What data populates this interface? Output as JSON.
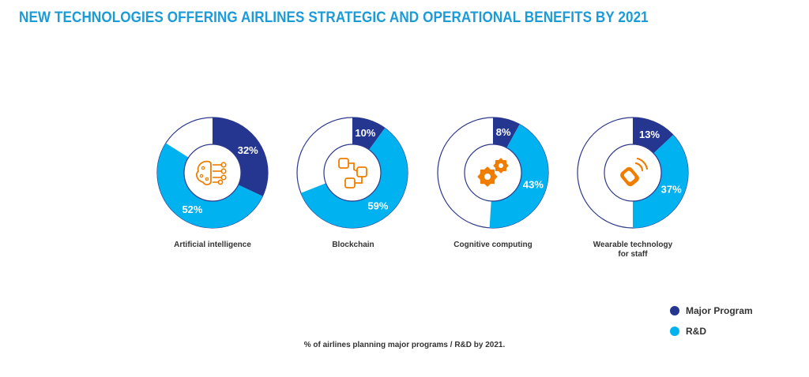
{
  "title": "NEW TECHNOLOGIES OFFERING AIRLINES STRATEGIC AND OPERATIONAL BENEFITS BY 2021",
  "colors": {
    "major": "#253691",
    "rd": "#00b2ef",
    "ring_border": "#2e3a8c",
    "icon": "#f07d00"
  },
  "chart_data": {
    "type": "pie",
    "subtype": "donut",
    "series_names": [
      "Major Program",
      "R&D"
    ],
    "charts": [
      {
        "name": "Artificial intelligence",
        "icon": "ai-brain-icon",
        "major_program": 32,
        "rd": 52,
        "major_label": "32%",
        "rd_label": "52%"
      },
      {
        "name": "Blockchain",
        "icon": "blockchain-icon",
        "major_program": 10,
        "rd": 59,
        "major_label": "10%",
        "rd_label": "59%"
      },
      {
        "name": "Cognitive computing",
        "icon": "gears-icon",
        "major_program": 8,
        "rd": 43,
        "major_label": "8%",
        "rd_label": "43%"
      },
      {
        "name": "Wearable technology\nfor staff",
        "icon": "wearable-icon",
        "major_program": 13,
        "rd": 37,
        "major_label": "13%",
        "rd_label": "37%"
      }
    ]
  },
  "legend": [
    {
      "label": "Major Program",
      "color": "#253691"
    },
    {
      "label": "R&D",
      "color": "#00b2ef"
    }
  ],
  "note": "% of airlines planning major programs / R&D by 2021."
}
